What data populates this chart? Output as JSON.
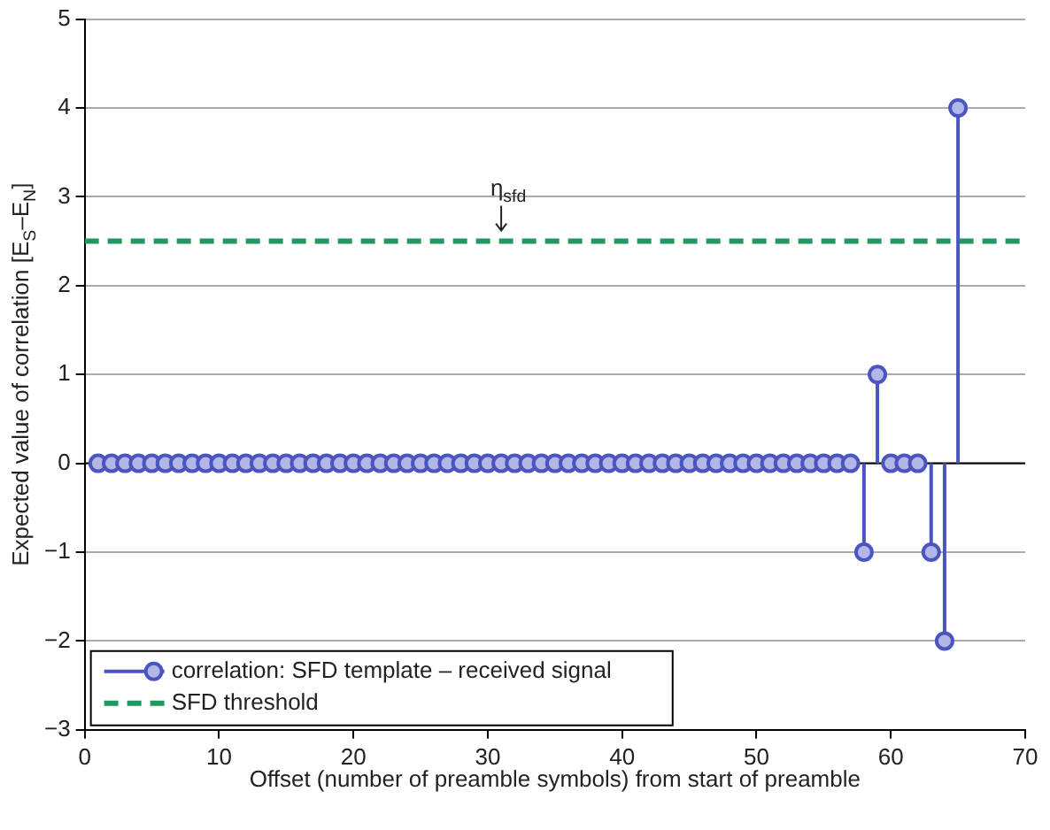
{
  "chart_data": {
    "type": "lollipop",
    "xlabel": "Offset (number of preamble symbols) from start of preamble",
    "ylabel": "Expected value of correlation [E$_{S}$–E$_{N}$]",
    "xlim": [
      0,
      70
    ],
    "xticks": [
      0,
      10,
      20,
      30,
      40,
      50,
      60,
      70
    ],
    "ylim": [
      -3,
      5
    ],
    "yticks": [
      -3,
      -2,
      -1,
      0,
      1,
      2,
      3,
      4,
      5
    ],
    "grid": "y",
    "legend": "bottom left",
    "series": [
      {
        "name": "correlation: SFD template – received signal",
        "color": "#4a55c0",
        "marker": "circle",
        "x": [
          1,
          2,
          3,
          4,
          5,
          6,
          7,
          8,
          9,
          10,
          11,
          12,
          13,
          14,
          15,
          16,
          17,
          18,
          19,
          20,
          21,
          22,
          23,
          24,
          25,
          26,
          27,
          28,
          29,
          30,
          31,
          32,
          33,
          34,
          35,
          36,
          37,
          38,
          39,
          40,
          41,
          42,
          43,
          44,
          45,
          46,
          47,
          48,
          49,
          50,
          51,
          52,
          53,
          54,
          55,
          56,
          57,
          58,
          59,
          60,
          61,
          62,
          63,
          64,
          65
        ],
        "values": [
          0,
          0,
          0,
          0,
          0,
          0,
          0,
          0,
          0,
          0,
          0,
          0,
          0,
          0,
          0,
          0,
          0,
          0,
          0,
          0,
          0,
          0,
          0,
          0,
          0,
          0,
          0,
          0,
          0,
          0,
          0,
          0,
          0,
          0,
          0,
          0,
          0,
          0,
          0,
          0,
          0,
          0,
          0,
          0,
          0,
          0,
          0,
          0,
          0,
          0,
          0,
          0,
          0,
          0,
          0,
          0,
          0,
          -1,
          1,
          0,
          0,
          0,
          -1,
          -2,
          4
        ]
      },
      {
        "name": "SFD threshold",
        "type": "line",
        "color": "#1f9960",
        "line_style": "dashed",
        "marker": "none",
        "x": [
          0,
          70
        ],
        "values": [
          2.5,
          2.5
        ]
      }
    ],
    "ref_lines": [
      {
        "axis": "y",
        "value": 0,
        "color": "#000000"
      }
    ],
    "annotations": [
      {
        "text": "η$_{sfd}$",
        "x": 31,
        "y": 2.5
      }
    ]
  }
}
